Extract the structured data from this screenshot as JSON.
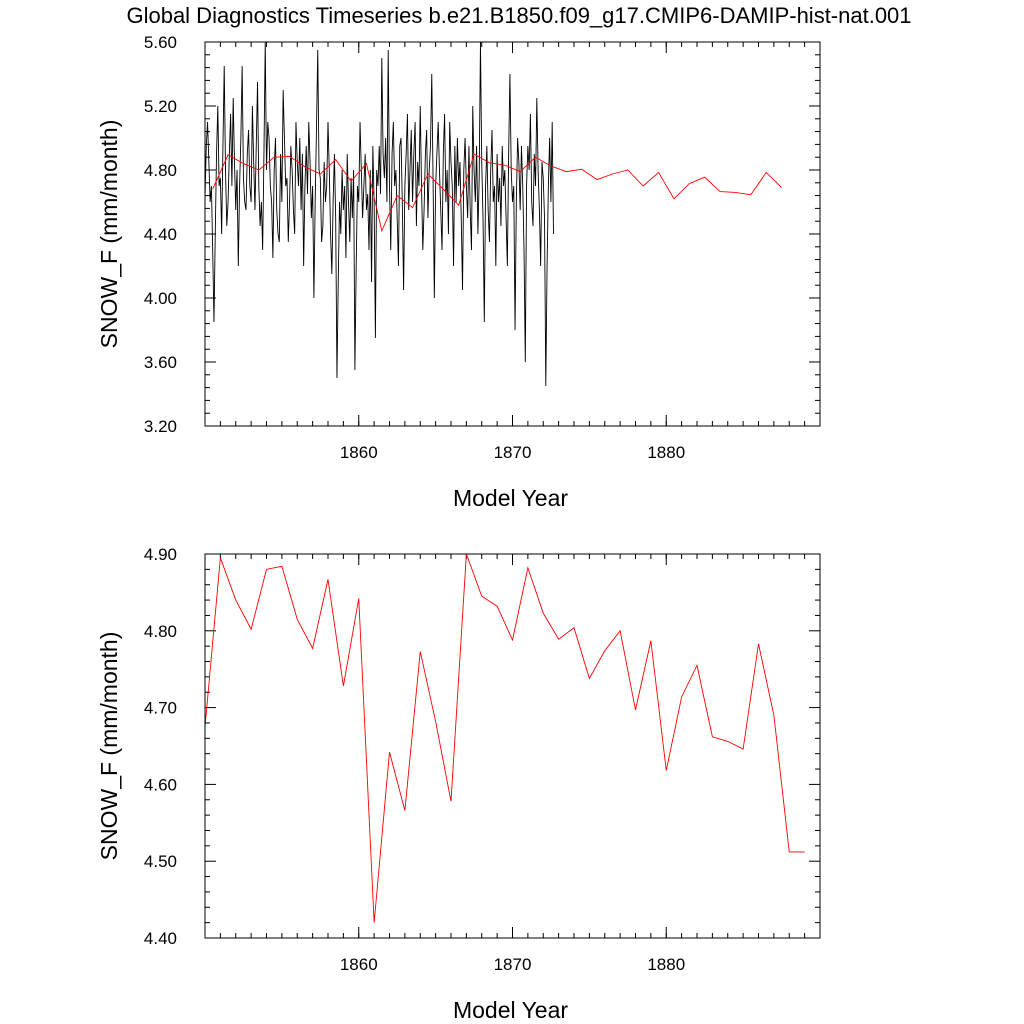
{
  "title": "Global Diagnostics Timeseries b.e21.B1850.f09_g17.CMIP6-DAMIP-hist-nat.001",
  "chart_data": [
    {
      "type": "line",
      "xlabel": "Model Year",
      "ylabel": "SNOW_F (mm/month)",
      "xlim": [
        1850,
        1890
      ],
      "ylim": [
        3.2,
        5.6
      ],
      "xticks": [
        1860,
        1870,
        1880
      ],
      "xtick_labels": [
        "1860",
        "1870",
        "1880"
      ],
      "yticks": [
        3.2,
        3.6,
        4.0,
        4.4,
        4.8,
        5.2,
        5.6
      ],
      "ytick_labels": [
        "3.20",
        "3.60",
        "4.00",
        "4.40",
        "4.80",
        "5.20",
        "5.60"
      ],
      "series": [
        {
          "color": "#000000",
          "style": "monthly",
          "x_start": 1850.0,
          "x_step": 0.08333,
          "values": [
            4.62,
            4.95,
            5.1,
            4.85,
            4.6,
            4.7,
            4.3,
            3.85,
            4.4,
            4.9,
            5.2,
            4.7,
            4.75,
            4.4,
            4.95,
            5.45,
            4.8,
            4.45,
            4.6,
            4.9,
            5.15,
            4.7,
            5.25,
            4.85,
            4.55,
            4.8,
            4.2,
            4.7,
            5.0,
            5.45,
            4.75,
            4.6,
            4.55,
            4.9,
            5.05,
            4.7,
            4.6,
            5.2,
            4.85,
            4.55,
            4.95,
            5.35,
            4.7,
            4.45,
            4.6,
            4.3,
            4.9,
            5.6,
            4.8,
            5.1,
            5.0,
            4.7,
            4.6,
            4.25,
            4.8,
            5.0,
            4.55,
            4.4,
            4.35,
            4.9,
            4.6,
            5.3,
            5.0,
            4.7,
            4.75,
            4.35,
            4.6,
            4.95,
            4.8,
            4.55,
            4.4,
            5.1,
            4.85,
            4.7,
            5.0,
            4.55,
            4.9,
            4.2,
            4.7,
            4.95,
            4.65,
            5.1,
            4.85,
            4.5,
            4.7,
            4.0,
            4.6,
            5.05,
            5.55,
            4.8,
            4.75,
            4.35,
            4.45,
            4.85,
            4.6,
            4.7,
            5.1,
            4.8,
            4.4,
            4.15,
            4.6,
            4.9,
            4.5,
            3.5,
            4.1,
            4.6,
            4.4,
            4.8,
            4.55,
            4.7,
            4.25,
            4.9,
            4.6,
            4.35,
            4.75,
            4.5,
            4.8,
            3.55,
            4.2,
            4.7,
            4.6,
            5.1,
            4.8,
            4.5,
            4.7,
            4.9,
            4.55,
            4.65,
            4.3,
            4.8,
            4.1,
            4.95,
            4.6,
            3.75,
            4.8,
            4.7,
            4.95,
            4.65,
            5.5,
            4.9,
            4.75,
            5.0,
            4.6,
            5.55,
            4.7,
            4.3,
            4.9,
            5.1,
            4.7,
            4.8,
            4.5,
            4.2,
            4.95,
            5.0,
            4.6,
            4.05,
            4.7,
            4.9,
            5.15,
            4.55,
            4.8,
            5.05,
            4.6,
            4.9,
            5.1,
            4.45,
            4.85,
            4.7,
            5.2,
            4.7,
            4.3,
            4.55,
            4.9,
            5.05,
            4.5,
            4.8,
            4.95,
            5.4,
            4.75,
            4.0,
            4.7,
            4.9,
            5.1,
            4.8,
            4.55,
            4.3,
            4.9,
            5.15,
            4.6,
            4.8,
            4.4,
            5.1,
            4.85,
            4.7,
            4.2,
            4.95,
            4.6,
            5.0,
            4.7,
            4.85,
            4.5,
            4.05,
            4.8,
            5.0,
            4.7,
            4.5,
            4.95,
            4.55,
            4.3,
            5.2,
            4.8,
            4.6,
            4.95,
            4.4,
            4.75,
            5.6,
            4.85,
            4.5,
            3.85,
            4.7,
            4.95,
            4.55,
            4.35,
            4.8,
            5.05,
            4.6,
            4.7,
            4.2,
            4.9,
            4.6,
            4.75,
            4.45,
            4.95,
            4.7,
            4.8,
            4.5,
            4.2,
            4.9,
            5.4,
            4.8,
            4.6,
            4.7,
            3.8,
            4.6,
            5.0,
            4.85,
            4.55,
            4.95,
            4.7,
            4.3,
            3.6,
            4.7,
            4.95,
            4.8,
            5.15,
            4.6,
            4.45,
            4.9,
            4.7,
            5.25,
            4.8,
            4.55,
            4.2,
            4.85,
            4.75,
            4.5,
            3.45,
            4.2,
            4.7,
            5.0,
            4.6,
            5.1,
            4.4
          ]
        },
        {
          "color": "#ff0000",
          "style": "annual",
          "x": [
            1850.5,
            1851.5,
            1852.5,
            1853.5,
            1854.5,
            1855.5,
            1856.5,
            1857.5,
            1858.5,
            1859.5,
            1860.5,
            1861.5,
            1862.5,
            1863.5,
            1864.5,
            1865.5,
            1866.5,
            1867.5,
            1868.5,
            1869.5,
            1870.5,
            1871.5,
            1872.5,
            1873.5,
            1874.5,
            1875.5,
            1876.5,
            1877.5,
            1878.5,
            1879.5,
            1880.5,
            1881.5,
            1882.5,
            1883.5,
            1884.5,
            1885.5,
            1886.5,
            1887.5
          ],
          "values": [
            4.68,
            4.895,
            4.84,
            4.8,
            4.88,
            4.885,
            4.82,
            4.775,
            4.865,
            4.73,
            4.84,
            4.42,
            4.64,
            4.565,
            4.775,
            4.68,
            4.58,
            4.9,
            4.845,
            4.83,
            4.79,
            4.88,
            4.825,
            4.79,
            4.805,
            4.74,
            4.775,
            4.8,
            4.7,
            4.785,
            4.62,
            4.715,
            4.755,
            4.665,
            4.66,
            4.645,
            4.785,
            4.69
          ]
        }
      ]
    },
    {
      "type": "line",
      "xlabel": "Model Year",
      "ylabel": "SNOW_F (mm/month)",
      "xlim": [
        1850,
        1890
      ],
      "ylim": [
        4.4,
        4.9
      ],
      "xticks": [
        1860,
        1870,
        1880
      ],
      "xtick_labels": [
        "1860",
        "1870",
        "1880"
      ],
      "yticks": [
        4.4,
        4.5,
        4.6,
        4.7,
        4.8,
        4.9
      ],
      "ytick_labels": [
        "4.40",
        "4.50",
        "4.60",
        "4.70",
        "4.80",
        "4.90"
      ],
      "series": [
        {
          "color": "#ff0000",
          "style": "annual",
          "x": [
            1850.0,
            1851.0,
            1852.0,
            1853.0,
            1854.0,
            1855.0,
            1856.0,
            1857.0,
            1858.0,
            1859.0,
            1860.0,
            1861.0,
            1862.0,
            1863.0,
            1864.0,
            1865.0,
            1866.0,
            1867.0,
            1868.0,
            1869.0,
            1870.0,
            1871.0,
            1872.0,
            1873.0,
            1874.0,
            1875.0,
            1876.0,
            1877.0,
            1878.0,
            1879.0,
            1880.0,
            1881.0,
            1882.0,
            1883.0,
            1884.0,
            1885.0,
            1886.0,
            1887.0,
            1888.0,
            1889.0
          ],
          "values": [
            4.675,
            4.895,
            4.84,
            4.802,
            4.88,
            4.884,
            4.815,
            4.777,
            4.867,
            4.728,
            4.842,
            4.42,
            4.642,
            4.566,
            4.773,
            4.682,
            4.578,
            4.9,
            4.845,
            4.832,
            4.788,
            4.882,
            4.823,
            4.789,
            4.804,
            4.738,
            4.774,
            4.8,
            4.697,
            4.787,
            4.618,
            4.714,
            4.755,
            4.662,
            4.656,
            4.646,
            4.783,
            4.69,
            4.512,
            4.512
          ]
        }
      ]
    }
  ]
}
